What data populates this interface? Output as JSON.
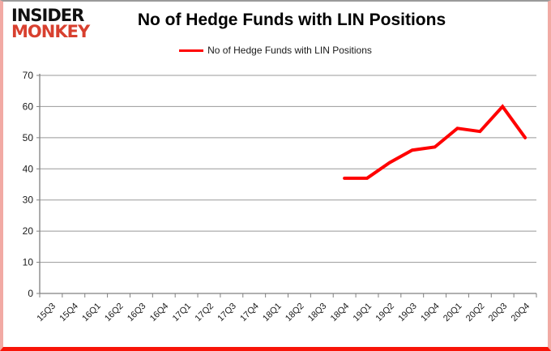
{
  "header": {
    "logo_line1": "INSIDER",
    "logo_line2": "MONKEY",
    "title": "No of Hedge Funds with LIN Positions"
  },
  "legend": {
    "label": "No of Hedge Funds with LIN Positions"
  },
  "colors": {
    "series_red": "#ff0000",
    "logo_red": "#d8402f",
    "gridline": "#999999",
    "axis": "#808080",
    "tick_label": "#1a1a1a",
    "frame_bottom_red": "#f81408",
    "frame_side_pink": "#f2aaa4"
  },
  "chart_data": {
    "type": "line",
    "title": "No of Hedge Funds with LIN Positions",
    "xlabel": "",
    "ylabel": "",
    "ylim": [
      0,
      70
    ],
    "yticks": [
      0,
      10,
      20,
      30,
      40,
      50,
      60,
      70
    ],
    "grid": true,
    "legend_position": "top",
    "categories": [
      "15Q3",
      "15Q4",
      "16Q1",
      "16Q2",
      "16Q3",
      "16Q4",
      "17Q1",
      "17Q2",
      "17Q3",
      "17Q4",
      "18Q1",
      "18Q2",
      "18Q3",
      "18Q4",
      "19Q1",
      "19Q2",
      "19Q3",
      "19Q4",
      "20Q1",
      "20Q2",
      "20Q3",
      "20Q4"
    ],
    "series": [
      {
        "name": "No of Hedge Funds with LIN Positions",
        "color": "#ff0000",
        "values": [
          null,
          null,
          null,
          null,
          null,
          null,
          null,
          null,
          null,
          null,
          null,
          null,
          null,
          37,
          37,
          42,
          46,
          47,
          53,
          52,
          60,
          50
        ]
      }
    ]
  }
}
